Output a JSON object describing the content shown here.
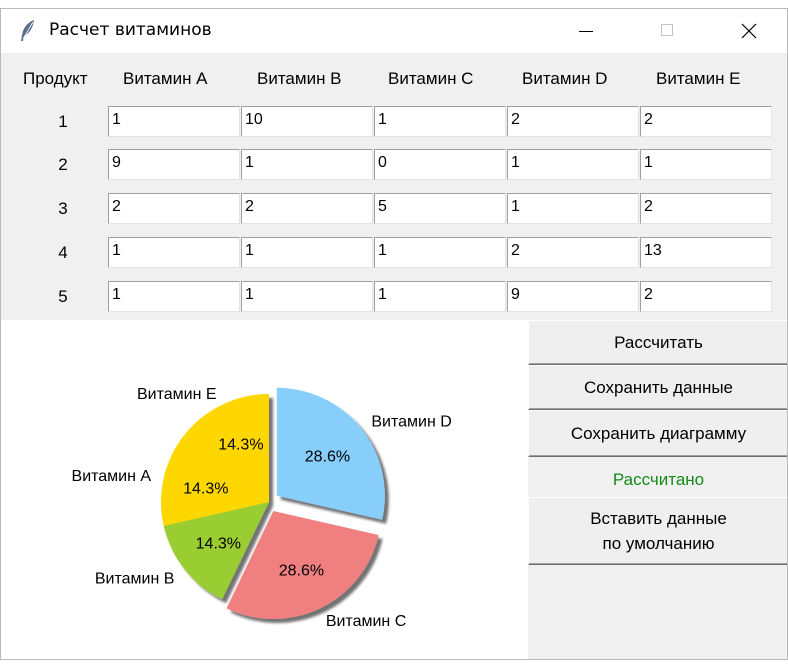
{
  "window": {
    "title": "Расчет витаминов"
  },
  "table": {
    "headers": [
      "Продукт",
      "Витамин A",
      "Витамин B",
      "Витамин C",
      "Витамин D",
      "Витамин E"
    ],
    "rows": [
      {
        "label": "1",
        "values": [
          "1",
          "10",
          "1",
          "2",
          "2"
        ]
      },
      {
        "label": "2",
        "values": [
          "9",
          "1",
          "0",
          "1",
          "1"
        ]
      },
      {
        "label": "3",
        "values": [
          "2",
          "2",
          "5",
          "1",
          "2"
        ]
      },
      {
        "label": "4",
        "values": [
          "1",
          "1",
          "1",
          "2",
          "13"
        ]
      },
      {
        "label": "5",
        "values": [
          "1",
          "1",
          "1",
          "9",
          "2"
        ]
      }
    ]
  },
  "buttons": {
    "calculate": "Рассчитать",
    "save_data": "Сохранить данные",
    "save_chart": "Сохранить диаграмму",
    "insert_default_line1": "Вставить данные",
    "insert_default_line2": "по умолчанию"
  },
  "status": {
    "text": "Рассчитано",
    "color": "#168a16"
  },
  "chart_data": {
    "type": "pie",
    "slices": [
      {
        "label": "Витамин D",
        "value": 28.6,
        "pct_label": "28.6%",
        "color": "#87cefa",
        "exploded": true
      },
      {
        "label": "Витамин C",
        "value": 28.6,
        "pct_label": "28.6%",
        "color": "#f08080",
        "exploded": true
      },
      {
        "label": "Витамин B",
        "value": 14.3,
        "pct_label": "14.3%",
        "color": "#9acd32",
        "exploded": false
      },
      {
        "label": "Витамин A",
        "value": 14.3,
        "pct_label": "14.3%",
        "color": "#ffd700",
        "exploded": false
      },
      {
        "label": "Витамин E",
        "value": 14.3,
        "pct_label": "14.3%",
        "color": "#ffd700",
        "exploded": false
      }
    ],
    "start_angle_deg": 90,
    "shadow": true
  }
}
